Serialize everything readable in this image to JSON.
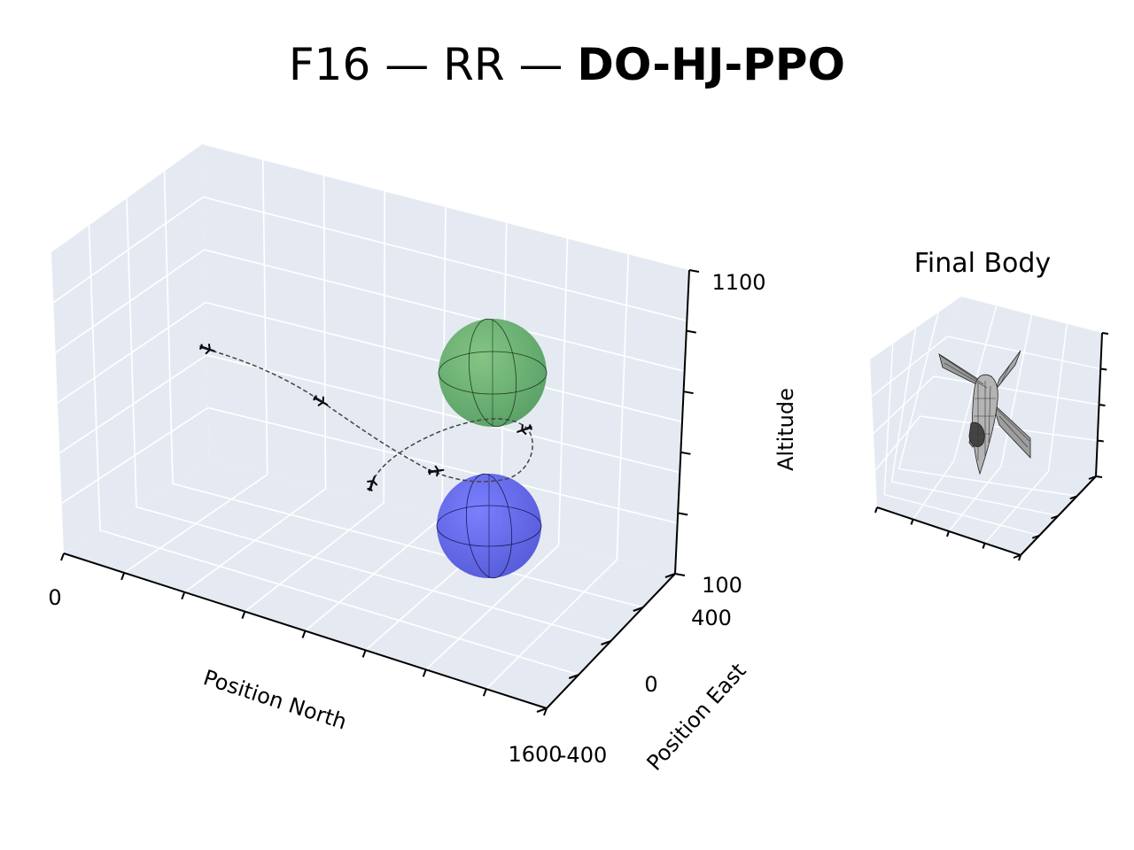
{
  "title": {
    "part1": "F16 — RR — ",
    "part2": "DO-HJ-PPO"
  },
  "colors": {
    "pane": "#e5eaf2",
    "grid": "#ffffff",
    "green_sphere": "#5fae5f",
    "blue_sphere": "#5a5ff0",
    "trajectory": "#444444"
  },
  "chart_data": [
    {
      "type": "scatter",
      "kind": "3d-trajectory",
      "xlabel": "Position North",
      "ylabel": "Position East",
      "zlabel": "Altitude",
      "x_ticks": [
        "0",
        "1600"
      ],
      "y_ticks": [
        "-400",
        "0",
        "400"
      ],
      "z_ticks": [
        "100",
        "1100"
      ],
      "xlim": [
        0,
        1600
      ],
      "ylim": [
        -400,
        400
      ],
      "zlim": [
        100,
        1100
      ],
      "grid": true,
      "trajectory_style": "dashed",
      "aircraft_markers": 5,
      "spheres": [
        {
          "color": "green",
          "position": "upper"
        },
        {
          "color": "blue",
          "position": "lower"
        }
      ]
    },
    {
      "type": "scatter",
      "kind": "3d-body-view",
      "title": "Final Body",
      "grid": true,
      "tick_labels": false
    }
  ]
}
